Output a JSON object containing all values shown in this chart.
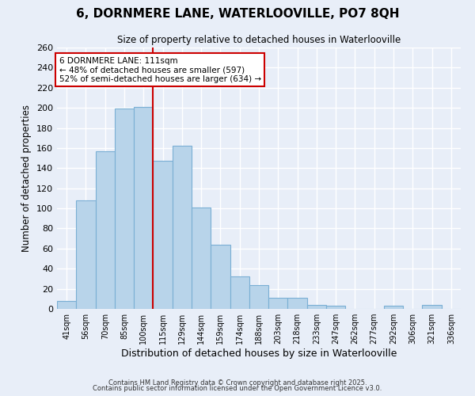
{
  "title": "6, DORNMERE LANE, WATERLOOVILLE, PO7 8QH",
  "subtitle": "Size of property relative to detached houses in Waterlooville",
  "xlabel": "Distribution of detached houses by size in Waterlooville",
  "ylabel": "Number of detached properties",
  "bar_labels": [
    "41sqm",
    "56sqm",
    "70sqm",
    "85sqm",
    "100sqm",
    "115sqm",
    "129sqm",
    "144sqm",
    "159sqm",
    "174sqm",
    "188sqm",
    "203sqm",
    "218sqm",
    "233sqm",
    "247sqm",
    "262sqm",
    "277sqm",
    "292sqm",
    "306sqm",
    "321sqm",
    "336sqm"
  ],
  "bar_values": [
    8,
    108,
    157,
    199,
    201,
    147,
    162,
    101,
    64,
    32,
    24,
    11,
    11,
    4,
    3,
    0,
    0,
    3,
    0,
    4,
    0
  ],
  "bar_color": "#b8d4ea",
  "bar_edge_color": "#7aafd4",
  "ylim": [
    0,
    260
  ],
  "yticks": [
    0,
    20,
    40,
    60,
    80,
    100,
    120,
    140,
    160,
    180,
    200,
    220,
    240,
    260
  ],
  "vline_x": 4.5,
  "vline_color": "#cc0000",
  "annotation_title": "6 DORNMERE LANE: 111sqm",
  "annotation_line1": "← 48% of detached houses are smaller (597)",
  "annotation_line2": "52% of semi-detached houses are larger (634) →",
  "footer1": "Contains HM Land Registry data © Crown copyright and database right 2025.",
  "footer2": "Contains public sector information licensed under the Open Government Licence v3.0.",
  "background_color": "#e8eef8",
  "plot_bg_color": "#e8eef8",
  "grid_color": "#ffffff",
  "title_fontsize": 11,
  "subtitle_fontsize": 8.5,
  "annotation_box_facecolor": "#ffffff",
  "annotation_box_edgecolor": "#cc0000"
}
